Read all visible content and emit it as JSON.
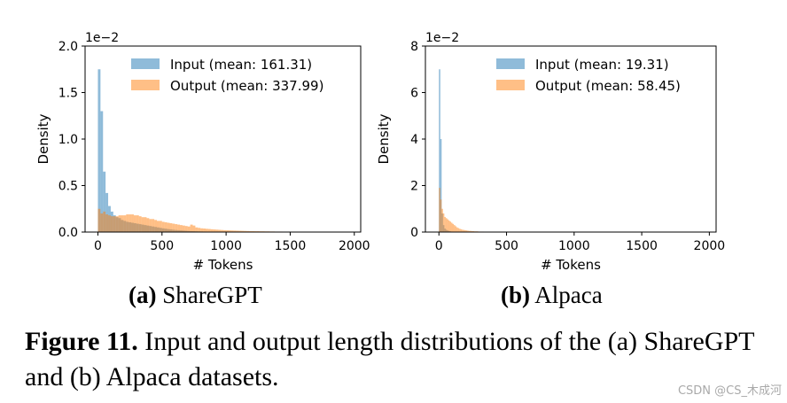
{
  "chart_data": [
    {
      "type": "histogram",
      "panel_label": "(a)",
      "panel_name": "ShareGPT",
      "xlabel": "# Tokens",
      "ylabel": "Density",
      "xlim": [
        -100,
        2050
      ],
      "ylim": [
        0,
        0.02
      ],
      "x_ticks": [
        0,
        500,
        1000,
        1500,
        2000
      ],
      "y_ticks": [
        0.0,
        0.5,
        1.0,
        1.5,
        2.0
      ],
      "y_tick_labels": [
        "0.0",
        "0.5",
        "1.0",
        "1.5",
        "2.0"
      ],
      "y_offset_label": "1e−2",
      "legend_position": "upper right",
      "bin_width": 20,
      "series": [
        {
          "name": "Input (mean: 161.31)",
          "color": "#1f77b4",
          "bins_start": 0,
          "values": [
            0.0175,
            0.013,
            0.0065,
            0.0042,
            0.0028,
            0.0022,
            0.0018,
            0.0016,
            0.0015,
            0.0013,
            0.0012,
            0.0011,
            0.00105,
            0.001,
            0.00095,
            0.0009,
            0.00085,
            0.0008,
            0.00075,
            0.0007,
            0.00065,
            0.0006,
            0.00055,
            0.0005,
            0.00045,
            0.0004,
            0.00036,
            0.00032,
            0.00028,
            0.00025,
            0.00022,
            0.0002,
            0.00018,
            0.00016,
            0.00014,
            0.00012,
            0.0001,
            9e-05,
            8e-05,
            7e-05,
            6e-05,
            5e-05,
            4e-05,
            3e-05,
            3e-05,
            2e-05,
            2e-05,
            1e-05,
            1e-05,
            1e-05
          ]
        },
        {
          "name": "Output (mean: 337.99)",
          "color": "#ff7f0e",
          "bins_start": 0,
          "values": [
            0.0025,
            0.002,
            0.0022,
            0.0019,
            0.0018,
            0.0017,
            0.0017,
            0.0017,
            0.0018,
            0.0018,
            0.0018,
            0.0019,
            0.0019,
            0.0019,
            0.0018,
            0.0018,
            0.0017,
            0.0016,
            0.0016,
            0.0015,
            0.0014,
            0.0014,
            0.0013,
            0.0012,
            0.0012,
            0.0011,
            0.00105,
            0.001,
            0.00095,
            0.0009,
            0.00085,
            0.0008,
            0.00075,
            0.0007,
            0.00065,
            0.0006,
            0.0008,
            0.0007,
            0.0005,
            0.00045,
            0.0004,
            0.00038,
            0.00035,
            0.00033,
            0.0003,
            0.00028,
            0.00026,
            0.00024,
            0.00022,
            0.0002,
            0.00019,
            0.00018,
            0.00017,
            0.00016,
            0.00015,
            0.00014,
            0.00013,
            0.00012,
            0.00011,
            0.0001,
            0.0001,
            9e-05,
            9e-05,
            8e-05,
            8e-05,
            7e-05,
            7e-05,
            6e-05,
            6e-05,
            5e-05,
            5e-05,
            5e-05,
            4e-05,
            4e-05,
            4e-05,
            3e-05,
            3e-05,
            3e-05,
            3e-05,
            2e-05,
            2e-05,
            2e-05,
            2e-05,
            2e-05,
            2e-05,
            1e-05,
            1e-05,
            1e-05,
            1e-05,
            1e-05,
            1e-05,
            1e-05,
            1e-05,
            1e-05,
            1e-05,
            1e-05,
            1e-05,
            1e-05,
            1e-05,
            1e-05
          ]
        }
      ]
    },
    {
      "type": "histogram",
      "panel_label": "(b)",
      "panel_name": "Alpaca",
      "xlabel": "# Tokens",
      "ylabel": "Density",
      "xlim": [
        -100,
        2050
      ],
      "ylim": [
        0,
        0.08
      ],
      "x_ticks": [
        0,
        500,
        1000,
        1500,
        2000
      ],
      "y_ticks": [
        0,
        2,
        4,
        6,
        8
      ],
      "y_tick_labels": [
        "0",
        "2",
        "4",
        "6",
        "8"
      ],
      "y_offset_label": "1e−2",
      "legend_position": "upper right",
      "bin_width": 10,
      "series": [
        {
          "name": "Input (mean: 19.31)",
          "color": "#1f77b4",
          "bins_start": 0,
          "values": [
            0.07,
            0.04,
            0.008,
            0.003,
            0.0015,
            0.001,
            0.0007,
            0.0005,
            0.0003,
            0.0002,
            0.0001,
            0.0001
          ]
        },
        {
          "name": "Output (mean: 58.45)",
          "color": "#ff7f0e",
          "bins_start": 0,
          "values": [
            0.019,
            0.014,
            0.01,
            0.008,
            0.0065,
            0.006,
            0.0055,
            0.005,
            0.0045,
            0.004,
            0.0035,
            0.003,
            0.0025,
            0.002,
            0.0017,
            0.0014,
            0.0012,
            0.001,
            0.0009,
            0.0008,
            0.0007,
            0.0006,
            0.0005,
            0.0005,
            0.0004,
            0.0004,
            0.0003,
            0.0003,
            0.0003,
            0.0002,
            0.0002,
            0.0002,
            0.0002,
            0.0001,
            0.0001,
            0.0001,
            0.0001,
            0.0001,
            0.0001,
            0.0001
          ]
        }
      ]
    }
  ],
  "caption": {
    "label": "Figure 11.",
    "text": " Input and output length distributions of the (a) ShareGPT and (b) Alpaca datasets."
  },
  "watermark": "CSDN @CS_木成河"
}
